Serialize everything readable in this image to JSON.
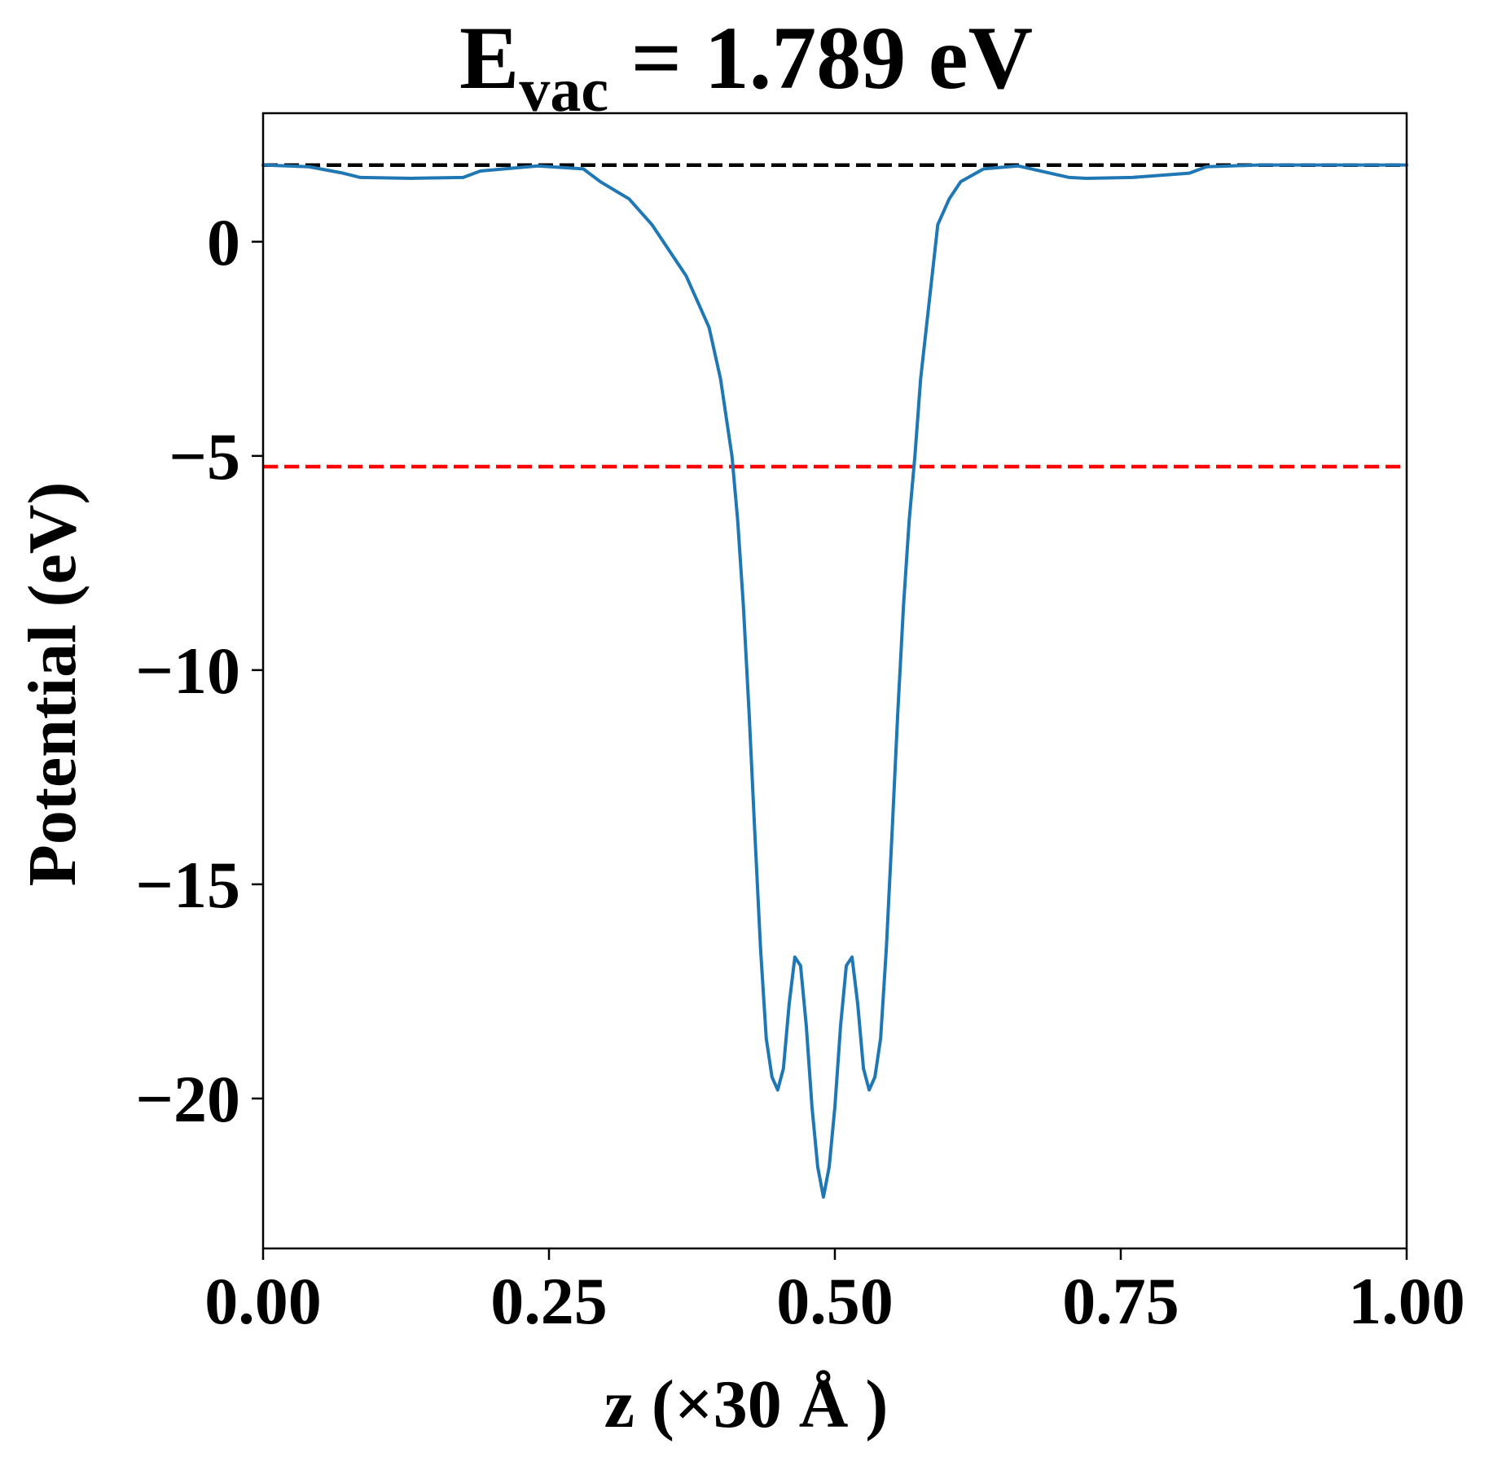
{
  "chart_data": {
    "type": "line",
    "title": {
      "main": "E",
      "subscript": "vac",
      "rest": " = 1.789 eV"
    },
    "xlabel": "z (×30 Å )",
    "ylabel": "Potential (eV)",
    "xlim": [
      0.0,
      1.0
    ],
    "ylim": [
      -23.5,
      3.0
    ],
    "x_ticks": [
      {
        "value": 0.0,
        "label": "0.00"
      },
      {
        "value": 0.25,
        "label": "0.25"
      },
      {
        "value": 0.5,
        "label": "0.50"
      },
      {
        "value": 0.75,
        "label": "0.75"
      },
      {
        "value": 1.0,
        "label": "1.00"
      }
    ],
    "y_ticks": [
      {
        "value": 0,
        "label": "0"
      },
      {
        "value": -5,
        "label": "−5"
      },
      {
        "value": -10,
        "label": "−10"
      },
      {
        "value": -15,
        "label": "−15"
      },
      {
        "value": -20,
        "label": "−20"
      }
    ],
    "grid": false,
    "reference_lines": [
      {
        "y": 1.789,
        "color": "#000000",
        "style": "dashed"
      },
      {
        "y": -5.25,
        "color": "#ff0000",
        "style": "dashed"
      }
    ],
    "series": [
      {
        "color": "#1f77b4",
        "x": [
          0.0,
          0.04,
          0.07,
          0.085,
          0.13,
          0.175,
          0.19,
          0.24,
          0.28,
          0.295,
          0.32,
          0.34,
          0.37,
          0.39,
          0.4,
          0.41,
          0.415,
          0.42,
          0.425,
          0.43,
          0.435,
          0.44,
          0.445,
          0.45,
          0.455,
          0.46,
          0.465,
          0.47,
          0.475,
          0.48,
          0.485,
          0.49,
          0.495,
          0.5,
          0.505,
          0.51,
          0.515,
          0.52,
          0.525,
          0.53,
          0.535,
          0.54,
          0.545,
          0.55,
          0.555,
          0.56,
          0.565,
          0.57,
          0.575,
          0.58,
          0.585,
          0.59,
          0.6,
          0.61,
          0.63,
          0.66,
          0.68,
          0.705,
          0.72,
          0.76,
          0.81,
          0.825,
          0.87,
          0.915,
          0.93,
          0.96,
          1.0
        ],
        "y": [
          1.79,
          1.75,
          1.6,
          1.5,
          1.48,
          1.5,
          1.65,
          1.77,
          1.7,
          1.4,
          1.0,
          0.4,
          -0.8,
          -2.0,
          -3.2,
          -5.0,
          -6.5,
          -8.5,
          -11.0,
          -13.8,
          -16.5,
          -18.6,
          -19.5,
          -19.8,
          -19.3,
          -17.8,
          -16.7,
          -16.9,
          -18.3,
          -20.2,
          -21.6,
          -22.3,
          -21.6,
          -20.2,
          -18.3,
          -16.9,
          -16.7,
          -17.8,
          -19.3,
          -19.8,
          -19.5,
          -18.6,
          -16.5,
          -13.8,
          -11.0,
          -8.5,
          -6.5,
          -5.0,
          -3.2,
          -2.0,
          -0.8,
          0.4,
          1.0,
          1.4,
          1.7,
          1.77,
          1.65,
          1.5,
          1.48,
          1.5,
          1.6,
          1.75,
          1.79,
          1.79,
          1.79,
          1.79,
          1.79
        ]
      }
    ]
  }
}
